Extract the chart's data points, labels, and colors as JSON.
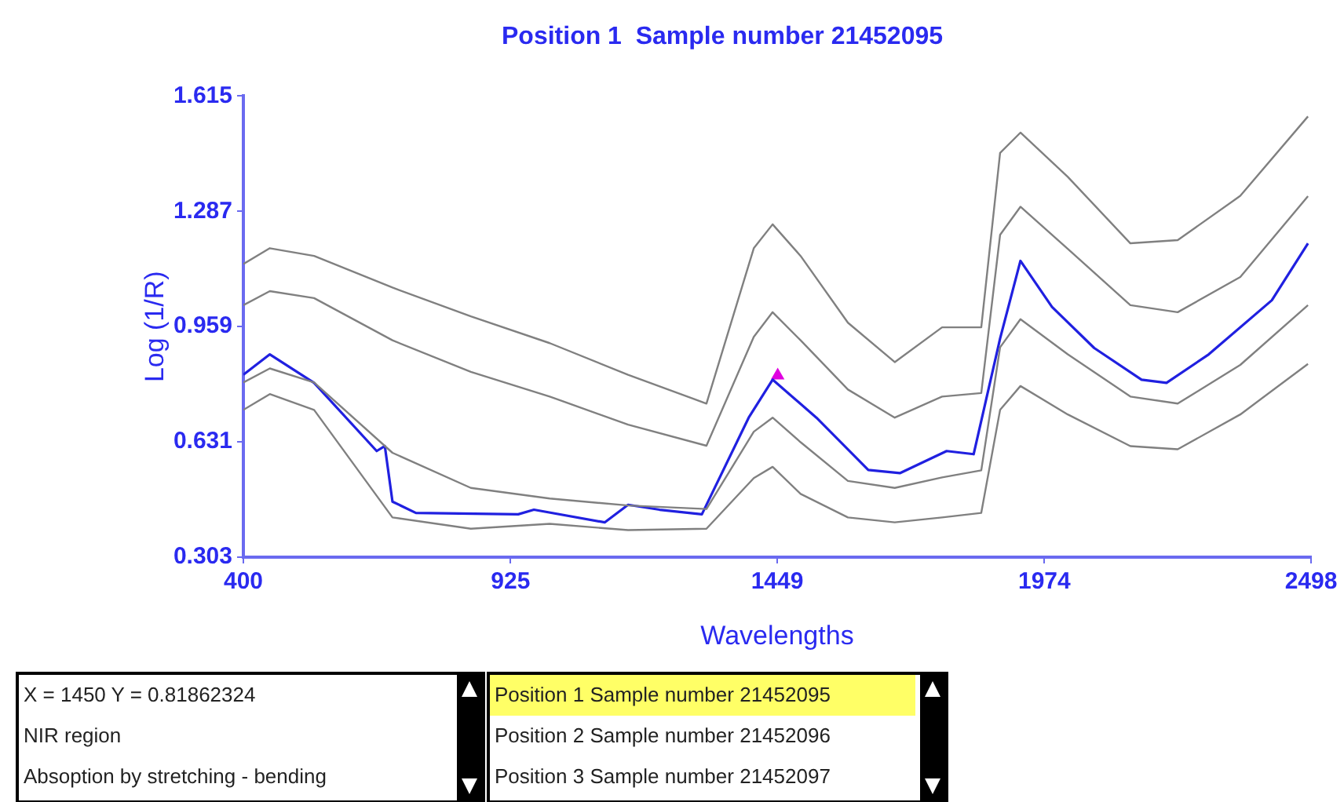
{
  "chart_data": {
    "type": "line",
    "title": "Position 1  Sample number 21452095",
    "xlabel": "Wavelengths",
    "ylabel": "Log (1/R)",
    "x": [
      400,
      452,
      539,
      693,
      847,
      1002,
      1156,
      1310,
      1403,
      1440,
      1495,
      1588,
      1680,
      1773,
      1850,
      1887,
      1927,
      2020,
      2143,
      2236,
      2359,
      2492
    ],
    "series": [
      {
        "color": "#808080",
        "values": [
          1.137,
          1.182,
          1.16,
          1.07,
          0.988,
          0.912,
          0.822,
          0.74,
          1.182,
          1.25,
          1.16,
          0.97,
          0.858,
          0.957,
          0.957,
          1.453,
          1.511,
          1.385,
          1.196,
          1.205,
          1.331,
          1.557
        ]
      },
      {
        "color": "#808080",
        "values": [
          1.02,
          1.06,
          1.04,
          0.92,
          0.83,
          0.76,
          0.68,
          0.62,
          0.93,
          1.0,
          0.92,
          0.78,
          0.7,
          0.76,
          0.77,
          1.22,
          1.3,
          1.18,
          1.02,
          1.0,
          1.1,
          1.33
        ]
      },
      {
        "color": "#808080",
        "values": [
          0.8,
          0.84,
          0.8,
          0.6,
          0.5,
          0.47,
          0.45,
          0.44,
          0.66,
          0.7,
          0.63,
          0.52,
          0.5,
          0.53,
          0.55,
          0.9,
          0.98,
          0.88,
          0.76,
          0.74,
          0.85,
          1.02
        ]
      },
      {
        "color": "#808080",
        "values": [
          0.722,
          0.767,
          0.722,
          0.416,
          0.384,
          0.398,
          0.38,
          0.384,
          0.528,
          0.56,
          0.483,
          0.416,
          0.402,
          0.416,
          0.429,
          0.722,
          0.79,
          0.709,
          0.619,
          0.61,
          0.709,
          0.853
        ]
      },
      {
        "color": "#2020e0",
        "x": [
          400,
          452,
          539,
          662,
          678,
          693,
          739,
          940,
          971,
          1110,
          1156,
          1218,
          1301,
          1393,
          1440,
          1526,
          1628,
          1690,
          1782,
          1835,
          1887,
          1927,
          1989,
          2072,
          2165,
          2214,
          2297,
          2421,
          2492
        ],
        "values": [
          0.822,
          0.88,
          0.799,
          0.605,
          0.619,
          0.461,
          0.429,
          0.425,
          0.438,
          0.402,
          0.452,
          0.438,
          0.425,
          0.7,
          0.808,
          0.7,
          0.551,
          0.542,
          0.605,
          0.596,
          0.925,
          1.146,
          1.015,
          0.898,
          0.808,
          0.799,
          0.88,
          1.034,
          1.196
        ]
      },
      {
        "type": "scatter",
        "color": "#e000e0",
        "marker": "triangle",
        "x": [
          1450
        ],
        "values": [
          0.82
        ]
      }
    ],
    "xlim": [
      400,
      2498
    ],
    "xticks": [
      400,
      925,
      1449,
      1974,
      2498
    ],
    "ylim": [
      0.303,
      1.615
    ],
    "yticks": [
      0.303,
      0.631,
      0.959,
      1.287,
      1.615
    ],
    "grid": false,
    "legend": false,
    "marker": "none",
    "line_style": "solid",
    "annotations": [
      "X = 1450     Y = 0.81862324",
      "NIR region",
      "Absoption by stretching - bending",
      "Position 1  Sample number 21452095",
      "Position 2  Sample number 21452096",
      "Position 3  Sample number 21452097"
    ]
  }
}
